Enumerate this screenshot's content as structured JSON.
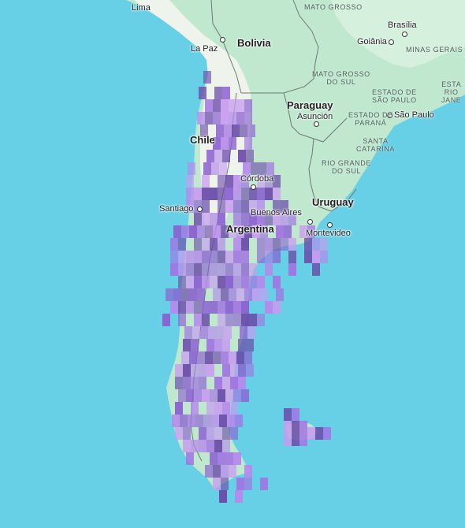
{
  "map": {
    "colors": {
      "ocean": "#67cfe6",
      "land": "#bfe8cf",
      "land_alt": "#d5f0dd",
      "andes": "#eef3ec",
      "border": "#6f7773",
      "heat_light": "#c89bf0",
      "heat_mid": "#a174e2",
      "heat_dark": "#6a4aa8"
    },
    "countries": [
      {
        "id": "bolivia",
        "name": "Bolivia"
      },
      {
        "id": "paraguay",
        "name": "Paraguay"
      },
      {
        "id": "chile",
        "name": "Chile"
      },
      {
        "id": "argentina",
        "name": "Argentina"
      },
      {
        "id": "uruguay",
        "name": "Uruguay"
      }
    ],
    "cities": [
      {
        "id": "lima",
        "name": "Lima"
      },
      {
        "id": "la-paz",
        "name": "La Paz"
      },
      {
        "id": "brasilia",
        "name": "Brasília"
      },
      {
        "id": "goiania",
        "name": "Goiânia"
      },
      {
        "id": "asuncion",
        "name": "Asunción"
      },
      {
        "id": "sao-paulo",
        "name": "São Paulo"
      },
      {
        "id": "cordoba",
        "name": "Córdoba"
      },
      {
        "id": "santiago",
        "name": "Santiago"
      },
      {
        "id": "buenos-aires",
        "name": "Buenos Aires"
      },
      {
        "id": "montevideo",
        "name": "Montevideo"
      }
    ],
    "regions": [
      {
        "id": "mato-grosso",
        "name": "MATO GROSSO"
      },
      {
        "id": "mato-grosso-do-sul",
        "name": "MATO GROSSO\nDO SUL"
      },
      {
        "id": "minas-gerais",
        "name": "MINAS GERAIS"
      },
      {
        "id": "estado-sao-paulo",
        "name": "ESTADO DE\nSÃO PAULO"
      },
      {
        "id": "estado-parana",
        "name": "ESTADO DE\nPARANÁ"
      },
      {
        "id": "estado-rio",
        "name": "ESTA\nRIO\nJANE"
      },
      {
        "id": "santa-catarina",
        "name": "SANTA\nCATARINA"
      },
      {
        "id": "rio-grande-do-sul",
        "name": "RIO GRANDE\nDO SUL"
      }
    ]
  }
}
